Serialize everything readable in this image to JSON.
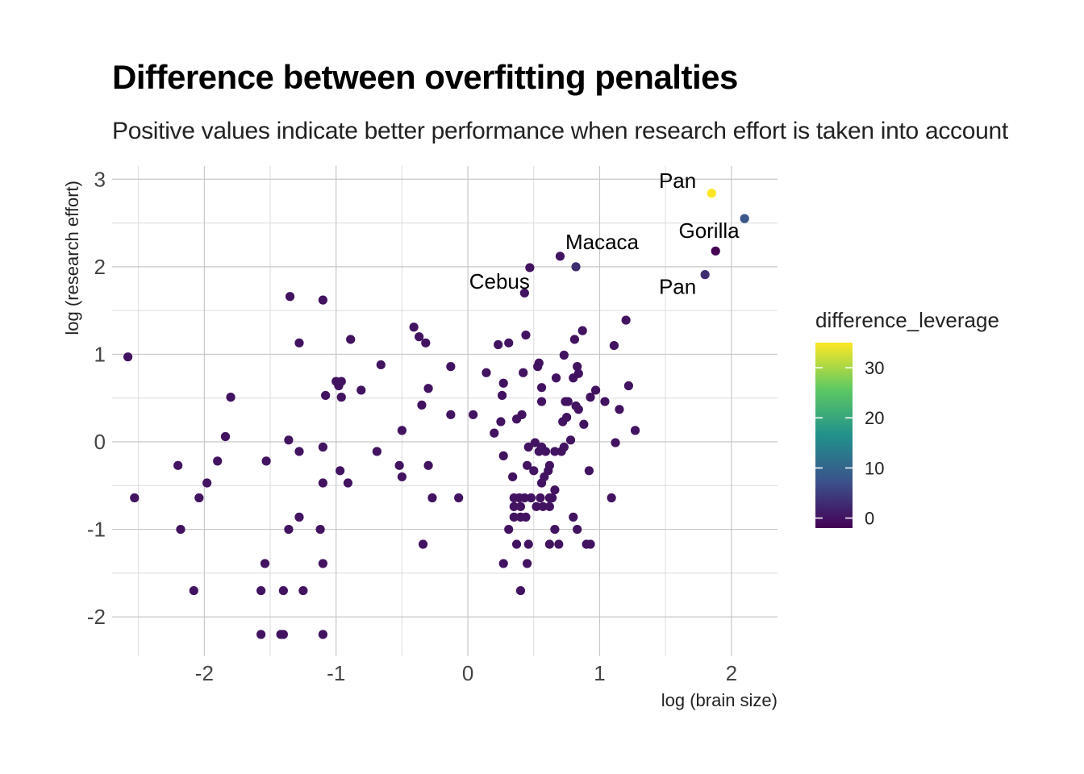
{
  "chart_data": {
    "type": "scatter",
    "title": "Difference between overfitting penalties",
    "subtitle": "Positive values indicate better performance when research effort is taken into account",
    "xlabel": "log (brain size)",
    "ylabel": "log (research effort)",
    "xlim": [
      -2.7,
      2.35
    ],
    "ylim": [
      -2.45,
      3.15
    ],
    "x_ticks": [
      "-2",
      "-1",
      "0",
      "1",
      "2"
    ],
    "x_tick_values": [
      -2,
      -1,
      0,
      1,
      2
    ],
    "y_ticks": [
      "-2",
      "-1",
      "0",
      "1",
      "2",
      "3"
    ],
    "y_tick_values": [
      -2,
      -1,
      0,
      1,
      2,
      3
    ],
    "grid": true,
    "legend": {
      "title": "difference_leverage",
      "position": "right",
      "type": "continuous",
      "range": [
        -2,
        35
      ],
      "ticks": [
        "0",
        "10",
        "20",
        "30"
      ],
      "tick_values": [
        0,
        10,
        20,
        30
      ],
      "palette": [
        "#440154",
        "#3b528b",
        "#21918c",
        "#5ec962",
        "#fde725"
      ]
    },
    "points": [
      {
        "x": -2.58,
        "y": 0.97,
        "c": 0
      },
      {
        "x": -2.53,
        "y": -0.64,
        "c": 0
      },
      {
        "x": -2.2,
        "y": -0.27,
        "c": 0
      },
      {
        "x": -2.18,
        "y": -1.0,
        "c": 0
      },
      {
        "x": -2.08,
        "y": -1.7,
        "c": 0
      },
      {
        "x": -2.04,
        "y": -0.64,
        "c": 0
      },
      {
        "x": -1.98,
        "y": -0.47,
        "c": 0
      },
      {
        "x": -1.9,
        "y": -0.22,
        "c": 0
      },
      {
        "x": -1.84,
        "y": 0.06,
        "c": 0
      },
      {
        "x": -1.8,
        "y": 0.51,
        "c": 0
      },
      {
        "x": -1.57,
        "y": -1.7,
        "c": 0
      },
      {
        "x": -1.57,
        "y": -2.2,
        "c": 0
      },
      {
        "x": -1.54,
        "y": -1.39,
        "c": 0
      },
      {
        "x": -1.53,
        "y": -0.22,
        "c": 0
      },
      {
        "x": -1.42,
        "y": -2.2,
        "c": 0
      },
      {
        "x": -1.4,
        "y": -2.2,
        "c": 0
      },
      {
        "x": -1.4,
        "y": -1.7,
        "c": 0
      },
      {
        "x": -1.36,
        "y": 0.02,
        "c": 0
      },
      {
        "x": -1.36,
        "y": -1.0,
        "c": 0
      },
      {
        "x": -1.35,
        "y": 1.66,
        "c": 0
      },
      {
        "x": -1.28,
        "y": 1.13,
        "c": 0
      },
      {
        "x": -1.28,
        "y": -0.86,
        "c": 0
      },
      {
        "x": -1.28,
        "y": -0.11,
        "c": 0
      },
      {
        "x": -1.25,
        "y": -1.7,
        "c": 0
      },
      {
        "x": -1.12,
        "y": -1.0,
        "c": 0
      },
      {
        "x": -1.1,
        "y": 1.62,
        "c": 0
      },
      {
        "x": -1.1,
        "y": -0.06,
        "c": 0
      },
      {
        "x": -1.1,
        "y": -1.39,
        "c": 0
      },
      {
        "x": -1.1,
        "y": -2.2,
        "c": 0
      },
      {
        "x": -1.1,
        "y": -0.47,
        "c": 0
      },
      {
        "x": -1.08,
        "y": 0.53,
        "c": 0
      },
      {
        "x": -1.0,
        "y": 0.69,
        "c": 0
      },
      {
        "x": -0.98,
        "y": 0.64,
        "c": 0
      },
      {
        "x": -0.97,
        "y": -0.33,
        "c": 0
      },
      {
        "x": -0.96,
        "y": 0.69,
        "c": 0
      },
      {
        "x": -0.96,
        "y": 0.51,
        "c": 0
      },
      {
        "x": -0.91,
        "y": -0.47,
        "c": 0
      },
      {
        "x": -0.89,
        "y": 1.17,
        "c": 0
      },
      {
        "x": -0.81,
        "y": 0.59,
        "c": 0
      },
      {
        "x": -0.69,
        "y": -0.11,
        "c": 0
      },
      {
        "x": -0.66,
        "y": 0.88,
        "c": 0
      },
      {
        "x": -0.52,
        "y": -0.27,
        "c": 0
      },
      {
        "x": -0.5,
        "y": 0.13,
        "c": 0
      },
      {
        "x": -0.5,
        "y": -0.4,
        "c": 0
      },
      {
        "x": -0.41,
        "y": 1.31,
        "c": 0
      },
      {
        "x": -0.37,
        "y": 1.2,
        "c": 0
      },
      {
        "x": -0.35,
        "y": 0.42,
        "c": 0
      },
      {
        "x": -0.34,
        "y": -1.17,
        "c": 0
      },
      {
        "x": -0.32,
        "y": 1.13,
        "c": 0
      },
      {
        "x": -0.3,
        "y": 0.61,
        "c": 0
      },
      {
        "x": -0.3,
        "y": -0.27,
        "c": 0
      },
      {
        "x": -0.27,
        "y": -0.64,
        "c": 0
      },
      {
        "x": -0.13,
        "y": 0.86,
        "c": 0
      },
      {
        "x": -0.13,
        "y": 0.31,
        "c": 0
      },
      {
        "x": -0.07,
        "y": -0.64,
        "c": 0
      },
      {
        "x": 0.04,
        "y": 0.31,
        "c": 0
      },
      {
        "x": 0.14,
        "y": 0.79,
        "c": 0
      },
      {
        "x": 0.2,
        "y": 0.1,
        "c": 0
      },
      {
        "x": 0.23,
        "y": 1.11,
        "c": 0
      },
      {
        "x": 0.25,
        "y": 0.23,
        "c": 0
      },
      {
        "x": 0.26,
        "y": 0.53,
        "c": 0
      },
      {
        "x": 0.27,
        "y": 0.67,
        "c": 0
      },
      {
        "x": 0.27,
        "y": -1.39,
        "c": 0
      },
      {
        "x": 0.27,
        "y": -0.16,
        "c": 0
      },
      {
        "x": 0.31,
        "y": 1.13,
        "c": 0
      },
      {
        "x": 0.31,
        "y": -1.0,
        "c": 0
      },
      {
        "x": 0.34,
        "y": -0.4,
        "c": 0
      },
      {
        "x": 0.35,
        "y": -0.64,
        "c": 0
      },
      {
        "x": 0.35,
        "y": -0.74,
        "c": 0
      },
      {
        "x": 0.35,
        "y": -0.86,
        "c": 0
      },
      {
        "x": 0.37,
        "y": -1.17,
        "c": 0
      },
      {
        "x": 0.37,
        "y": 0.26,
        "c": 0
      },
      {
        "x": 0.39,
        "y": -0.64,
        "c": 0
      },
      {
        "x": 0.4,
        "y": -1.7,
        "c": 0
      },
      {
        "x": 0.4,
        "y": -0.74,
        "c": 0
      },
      {
        "x": 0.4,
        "y": -0.86,
        "c": 0
      },
      {
        "x": 0.41,
        "y": 0.31,
        "c": 0
      },
      {
        "x": 0.42,
        "y": 0.79,
        "c": 0
      },
      {
        "x": 0.43,
        "y": -0.64,
        "c": 0
      },
      {
        "x": 0.43,
        "y": 1.7,
        "c": 0
      },
      {
        "x": 0.44,
        "y": -0.86,
        "c": 0
      },
      {
        "x": 0.44,
        "y": 1.22,
        "c": 0
      },
      {
        "x": 0.45,
        "y": -1.39,
        "c": 0
      },
      {
        "x": 0.45,
        "y": -0.27,
        "c": 0
      },
      {
        "x": 0.46,
        "y": -0.06,
        "c": 0
      },
      {
        "x": 0.46,
        "y": -1.17,
        "c": 0
      },
      {
        "x": 0.47,
        "y": 1.99,
        "c": 0
      },
      {
        "x": 0.48,
        "y": -0.64,
        "c": 0
      },
      {
        "x": 0.5,
        "y": -0.33,
        "c": 0
      },
      {
        "x": 0.51,
        "y": -0.01,
        "c": 0
      },
      {
        "x": 0.52,
        "y": -0.74,
        "c": 0
      },
      {
        "x": 0.53,
        "y": 0.86,
        "c": 0
      },
      {
        "x": 0.54,
        "y": -0.11,
        "c": 0
      },
      {
        "x": 0.54,
        "y": 0.9,
        "c": 0
      },
      {
        "x": 0.55,
        "y": -0.64,
        "c": 0
      },
      {
        "x": 0.56,
        "y": -0.06,
        "c": 0
      },
      {
        "x": 0.56,
        "y": 0.62,
        "c": 0
      },
      {
        "x": 0.56,
        "y": 0.46,
        "c": 0
      },
      {
        "x": 0.56,
        "y": -0.47,
        "c": 0
      },
      {
        "x": 0.57,
        "y": -0.74,
        "c": 0
      },
      {
        "x": 0.58,
        "y": -0.4,
        "c": 0
      },
      {
        "x": 0.59,
        "y": -0.11,
        "c": 0
      },
      {
        "x": 0.61,
        "y": -0.33,
        "c": 0
      },
      {
        "x": 0.62,
        "y": -0.64,
        "c": 0
      },
      {
        "x": 0.62,
        "y": -1.17,
        "c": 0
      },
      {
        "x": 0.62,
        "y": -0.27,
        "c": 0
      },
      {
        "x": 0.62,
        "y": -0.74,
        "c": 0
      },
      {
        "x": 0.64,
        "y": -0.64,
        "c": 0
      },
      {
        "x": 0.66,
        "y": -0.55,
        "c": 0
      },
      {
        "x": 0.66,
        "y": -0.11,
        "c": 0
      },
      {
        "x": 0.66,
        "y": -1.0,
        "c": 0
      },
      {
        "x": 0.67,
        "y": 0.73,
        "c": 0
      },
      {
        "x": 0.69,
        "y": -1.17,
        "c": 0
      },
      {
        "x": 0.7,
        "y": 2.12,
        "c": 0
      },
      {
        "x": 0.71,
        "y": -0.11,
        "c": 0
      },
      {
        "x": 0.72,
        "y": 0.23,
        "c": 0
      },
      {
        "x": 0.73,
        "y": 0.99,
        "c": 0
      },
      {
        "x": 0.73,
        "y": -0.06,
        "c": 0
      },
      {
        "x": 0.74,
        "y": 0.46,
        "c": 0
      },
      {
        "x": 0.75,
        "y": 0.28,
        "c": 0
      },
      {
        "x": 0.76,
        "y": 0.46,
        "c": 0
      },
      {
        "x": 0.78,
        "y": 0.02,
        "c": 0
      },
      {
        "x": 0.8,
        "y": 0.73,
        "c": 0
      },
      {
        "x": 0.8,
        "y": -0.86,
        "c": 0
      },
      {
        "x": 0.81,
        "y": 1.17,
        "c": 0
      },
      {
        "x": 0.82,
        "y": 0.41,
        "c": 0
      },
      {
        "x": 0.82,
        "y": 2.0,
        "c": 3
      },
      {
        "x": 0.83,
        "y": -1.0,
        "c": 0
      },
      {
        "x": 0.83,
        "y": 0.86,
        "c": 0
      },
      {
        "x": 0.84,
        "y": 0.37,
        "c": 0
      },
      {
        "x": 0.84,
        "y": 0.78,
        "c": 0
      },
      {
        "x": 0.87,
        "y": 1.27,
        "c": 0
      },
      {
        "x": 0.88,
        "y": 0.2,
        "c": 0
      },
      {
        "x": 0.9,
        "y": -1.17,
        "c": 0
      },
      {
        "x": 0.92,
        "y": -0.33,
        "c": 0
      },
      {
        "x": 0.93,
        "y": 0.51,
        "c": 0
      },
      {
        "x": 0.93,
        "y": -1.17,
        "c": 0
      },
      {
        "x": 0.97,
        "y": 0.59,
        "c": 0
      },
      {
        "x": 1.04,
        "y": 0.46,
        "c": 0
      },
      {
        "x": 1.09,
        "y": -0.64,
        "c": 0
      },
      {
        "x": 1.11,
        "y": 1.1,
        "c": 0
      },
      {
        "x": 1.12,
        "y": -0.01,
        "c": 0
      },
      {
        "x": 1.15,
        "y": 0.37,
        "c": 0
      },
      {
        "x": 1.2,
        "y": 1.39,
        "c": 0
      },
      {
        "x": 1.22,
        "y": 0.64,
        "c": 0
      },
      {
        "x": 1.27,
        "y": 0.13,
        "c": 0
      },
      {
        "x": 1.8,
        "y": 1.91,
        "c": 3
      },
      {
        "x": 1.85,
        "y": 2.84,
        "c": 35
      },
      {
        "x": 1.88,
        "y": 2.18,
        "c": -2
      },
      {
        "x": 2.1,
        "y": 2.55,
        "c": 8
      }
    ],
    "annotations": [
      {
        "text": "Pan",
        "x": 1.45,
        "y": 2.9
      },
      {
        "text": "Macaca",
        "x": 0.74,
        "y": 2.2
      },
      {
        "text": "Gorilla",
        "x": 1.6,
        "y": 2.33
      },
      {
        "text": "Cebus",
        "x": 0.01,
        "y": 1.75
      },
      {
        "text": "Pan",
        "x": 1.45,
        "y": 1.69
      }
    ]
  }
}
